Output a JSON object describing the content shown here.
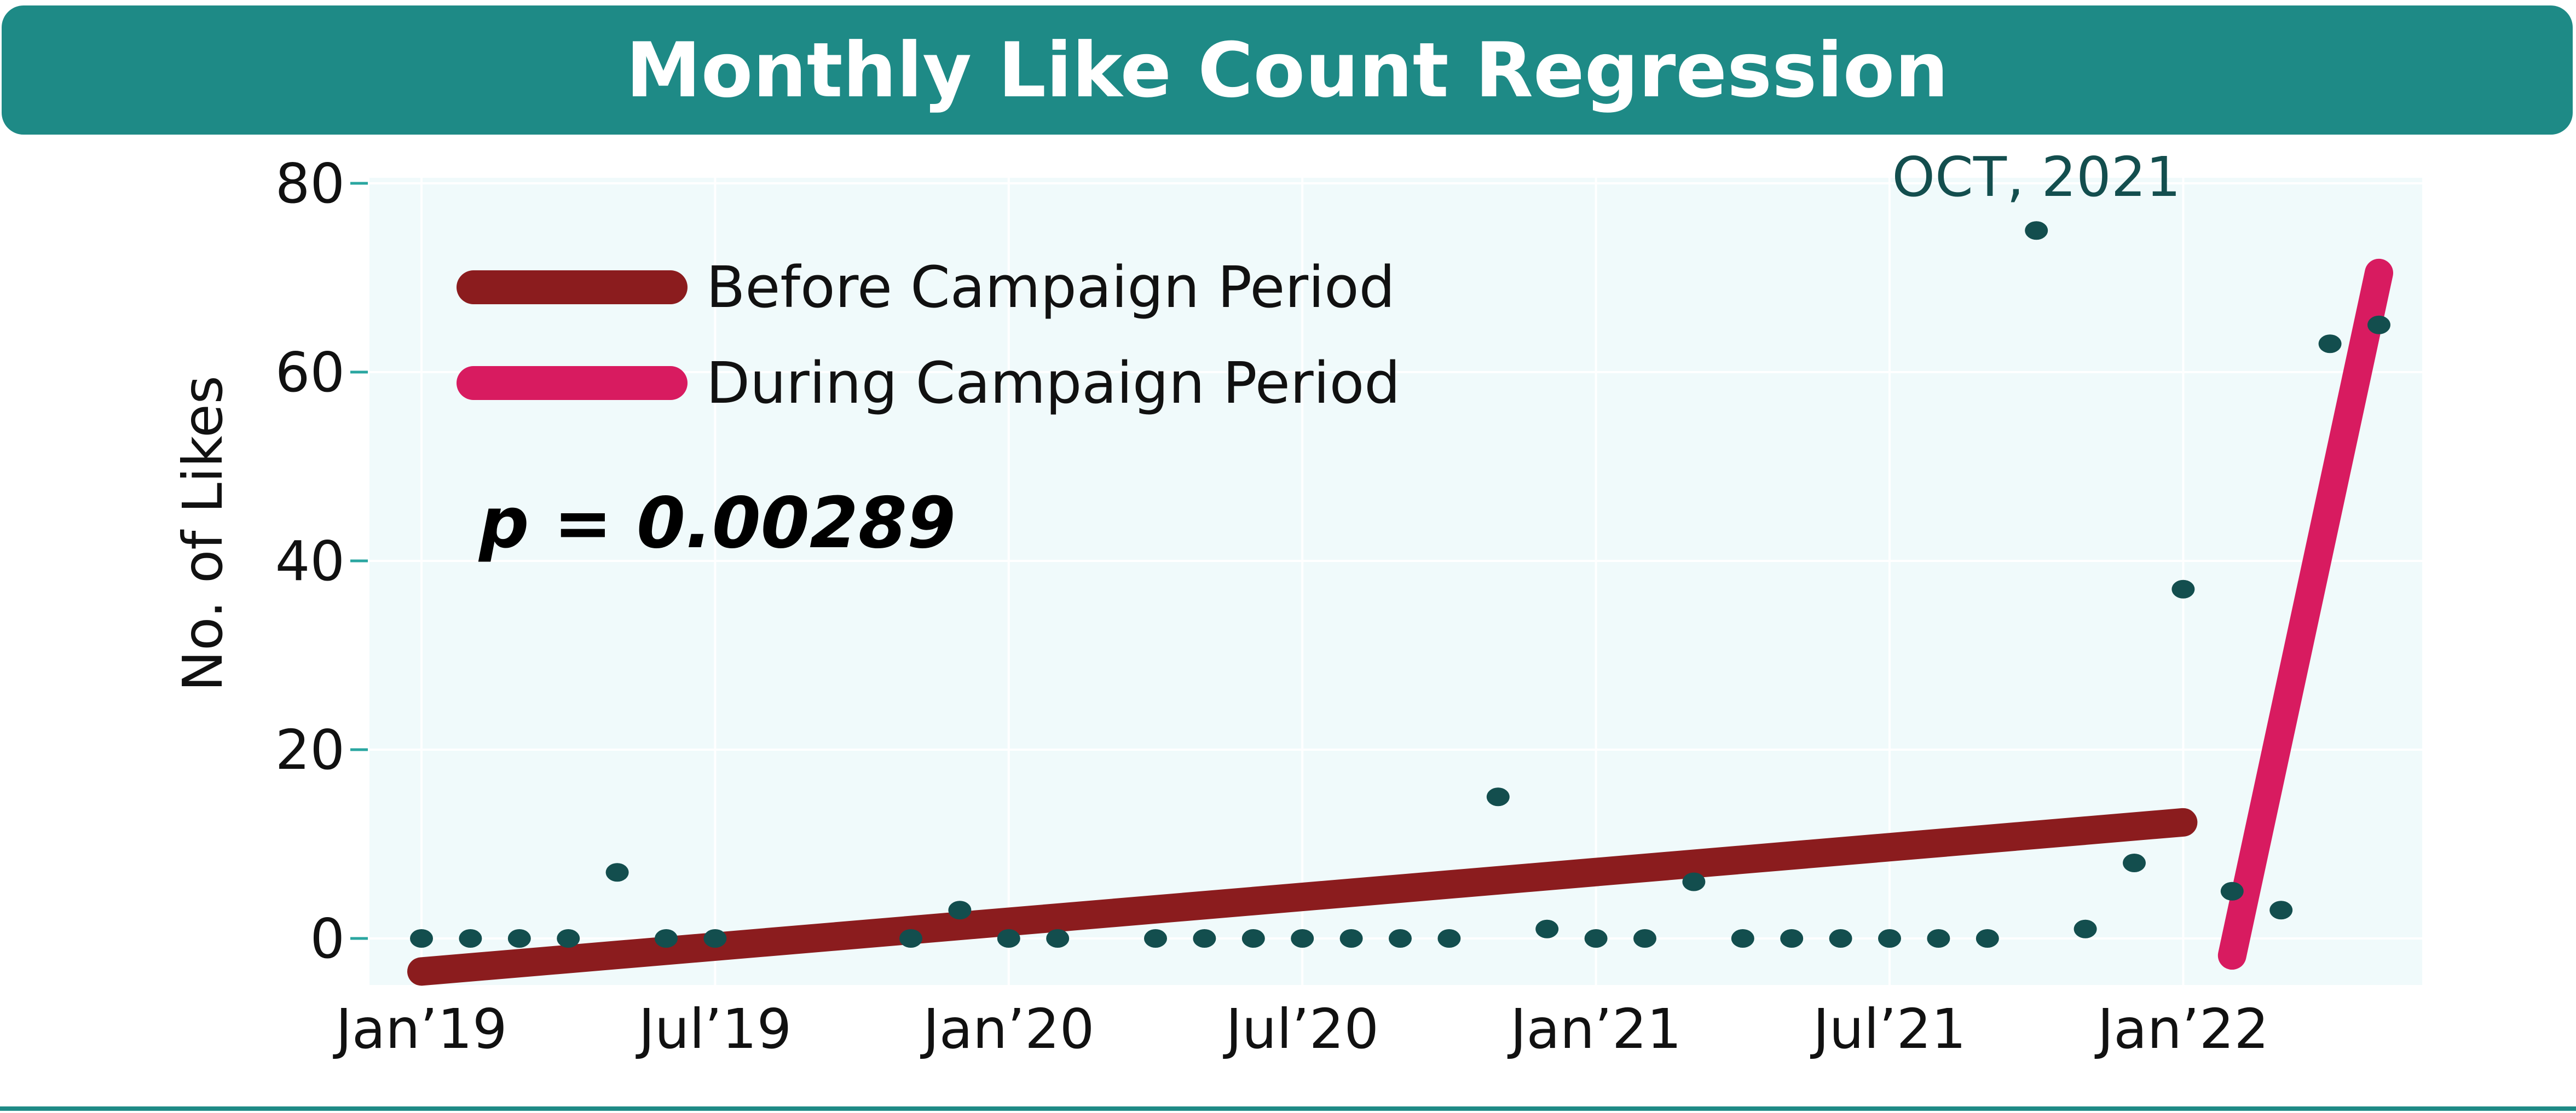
{
  "chart_data": {
    "type": "scatter",
    "title": "Monthly Like Count Regression",
    "ylabel": "No. of Likes",
    "xlabel": "",
    "ylim": [
      -5,
      80
    ],
    "yticks": [
      0,
      20,
      40,
      60,
      80
    ],
    "xticks": [
      {
        "label": "Jan’19",
        "month": 0
      },
      {
        "label": "Jul’19",
        "month": 6
      },
      {
        "label": "Jan’20",
        "month": 12
      },
      {
        "label": "Jul’20",
        "month": 18
      },
      {
        "label": "Jan’21",
        "month": 24
      },
      {
        "label": "Jul’21",
        "month": 30
      },
      {
        "label": "Jan’22",
        "month": 36
      }
    ],
    "grid": true,
    "point_color": "#134e4e",
    "points": [
      {
        "month": 0,
        "y": 0
      },
      {
        "month": 1,
        "y": 0
      },
      {
        "month": 2,
        "y": 0
      },
      {
        "month": 3,
        "y": 0
      },
      {
        "month": 4,
        "y": 7
      },
      {
        "month": 5,
        "y": 0
      },
      {
        "month": 6,
        "y": 0
      },
      {
        "month": 10,
        "y": 0
      },
      {
        "month": 11,
        "y": 3
      },
      {
        "month": 12,
        "y": 0
      },
      {
        "month": 13,
        "y": 0
      },
      {
        "month": 15,
        "y": 0
      },
      {
        "month": 16,
        "y": 0
      },
      {
        "month": 17,
        "y": 0
      },
      {
        "month": 18,
        "y": 0
      },
      {
        "month": 19,
        "y": 0
      },
      {
        "month": 20,
        "y": 0
      },
      {
        "month": 21,
        "y": 0
      },
      {
        "month": 22,
        "y": 15
      },
      {
        "month": 23,
        "y": 1
      },
      {
        "month": 24,
        "y": 0
      },
      {
        "month": 25,
        "y": 0
      },
      {
        "month": 26,
        "y": 6
      },
      {
        "month": 27,
        "y": 0
      },
      {
        "month": 28,
        "y": 0
      },
      {
        "month": 29,
        "y": 0
      },
      {
        "month": 30,
        "y": 0
      },
      {
        "month": 31,
        "y": 0
      },
      {
        "month": 32,
        "y": 0
      },
      {
        "month": 33,
        "y": 75
      },
      {
        "month": 34,
        "y": 1
      },
      {
        "month": 35,
        "y": 8
      },
      {
        "month": 36,
        "y": 37
      },
      {
        "month": 37,
        "y": 5
      },
      {
        "month": 38,
        "y": 3
      },
      {
        "month": 39,
        "y": 63
      },
      {
        "month": 40,
        "y": 65
      }
    ],
    "series": [
      {
        "name": "Before Campaign Period",
        "color": "#8b1c1e",
        "line": [
          {
            "month": 0,
            "y": -3.5
          },
          {
            "month": 36,
            "y": 12.3
          }
        ]
      },
      {
        "name": "During Campaign Period",
        "color": "#d81b60",
        "line": [
          {
            "month": 37,
            "y": -1.8
          },
          {
            "month": 40,
            "y": 70.5
          }
        ]
      }
    ],
    "annotations": [
      {
        "text": "p = 0.00289"
      },
      {
        "text": "OCT, 2021",
        "month": 33
      }
    ]
  }
}
